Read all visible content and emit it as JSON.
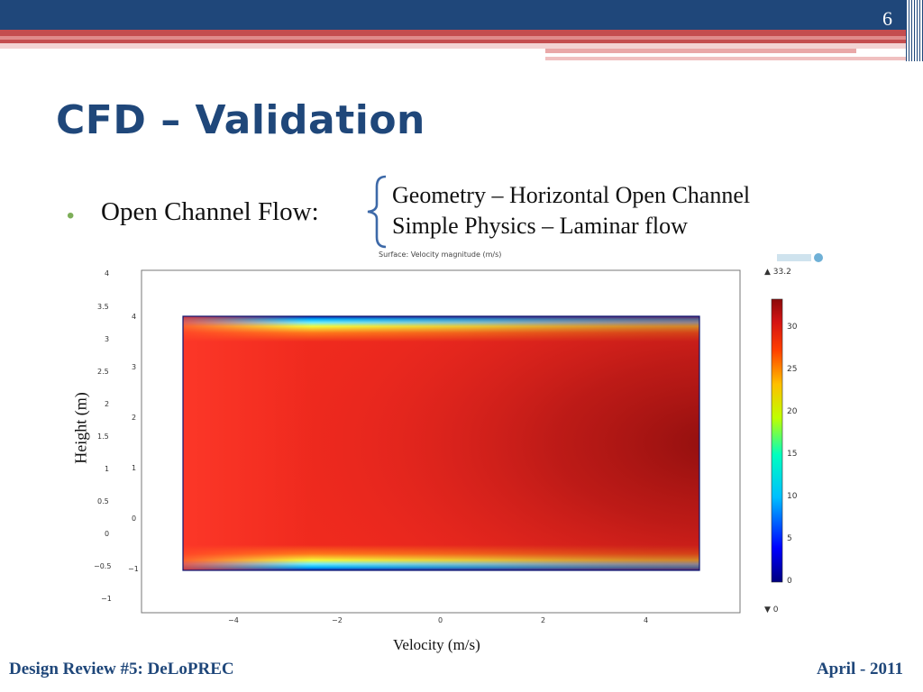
{
  "slide": {
    "page_number": "6",
    "title": "CFD – Validation",
    "bullet": "Open Channel Flow:",
    "brace_lines": [
      "Geometry – Horizontal Open Channel",
      "Simple Physics – Laminar flow"
    ],
    "y_axis_label": "Height (m)",
    "x_axis_label": "Velocity (m/s)",
    "footer_left": "Design Review #5: DeLoPREC",
    "footer_right": "April - 2011"
  },
  "plot": {
    "title": "Surface: Velocity magnitude (m/s)",
    "x_ticks": [
      "−4",
      "−2",
      "0",
      "2",
      "4"
    ],
    "inner_y_ticks": [
      "4",
      "3",
      "2",
      "1",
      "0",
      "−1"
    ],
    "outer_y_ticks": [
      "4",
      "3.5",
      "3",
      "2.5",
      "2",
      "1.5",
      "1",
      "0.5",
      "0",
      "−0.5",
      "−1"
    ],
    "colorbar": {
      "max_label": "▲ 33.2",
      "min_label": "▼ 0",
      "ticks": [
        "30",
        "25",
        "20",
        "15",
        "10",
        "5",
        "0"
      ],
      "colors": [
        "#00007f",
        "#0000ff",
        "#00bfff",
        "#00ffbf",
        "#bfff00",
        "#ffbf00",
        "#ff3f00",
        "#d41414",
        "#8b0a0a"
      ]
    }
  }
}
